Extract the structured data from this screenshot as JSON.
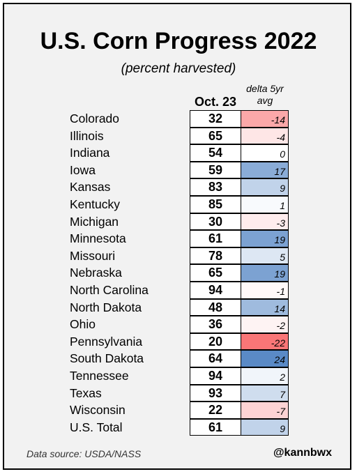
{
  "title": "U.S. Corn Progress 2022",
  "subtitle": "(percent harvested)",
  "source": "Data source: USDA/NASS",
  "handle": "@kannbwx",
  "chart_data": {
    "type": "table",
    "title": "U.S. Corn Progress 2022",
    "subtitle": "(percent harvested)",
    "columns": [
      "Oct. 23",
      "delta 5yr avg"
    ],
    "rows": [
      {
        "state": "Colorado",
        "value": 32,
        "delta": -14
      },
      {
        "state": "Illinois",
        "value": 65,
        "delta": -4
      },
      {
        "state": "Indiana",
        "value": 54,
        "delta": 0
      },
      {
        "state": "Iowa",
        "value": 59,
        "delta": 17
      },
      {
        "state": "Kansas",
        "value": 83,
        "delta": 9
      },
      {
        "state": "Kentucky",
        "value": 85,
        "delta": 1
      },
      {
        "state": "Michigan",
        "value": 30,
        "delta": -3
      },
      {
        "state": "Minnesota",
        "value": 61,
        "delta": 19
      },
      {
        "state": "Missouri",
        "value": 78,
        "delta": 5
      },
      {
        "state": "Nebraska",
        "value": 65,
        "delta": 19
      },
      {
        "state": "North Carolina",
        "value": 94,
        "delta": -1
      },
      {
        "state": "North Dakota",
        "value": 48,
        "delta": 14
      },
      {
        "state": "Ohio",
        "value": 36,
        "delta": -2
      },
      {
        "state": "Pennsylvania",
        "value": 20,
        "delta": -22
      },
      {
        "state": "South Dakota",
        "value": 64,
        "delta": 24
      },
      {
        "state": "Tennessee",
        "value": 94,
        "delta": 2
      },
      {
        "state": "Texas",
        "value": 93,
        "delta": 7
      },
      {
        "state": "Wisconsin",
        "value": 22,
        "delta": -7
      },
      {
        "state": "U.S. Total",
        "value": 61,
        "delta": 9
      }
    ],
    "colors": {
      "negative": "#f8696b",
      "neutral": "#ffffff",
      "positive": "#5a8ac6"
    }
  }
}
